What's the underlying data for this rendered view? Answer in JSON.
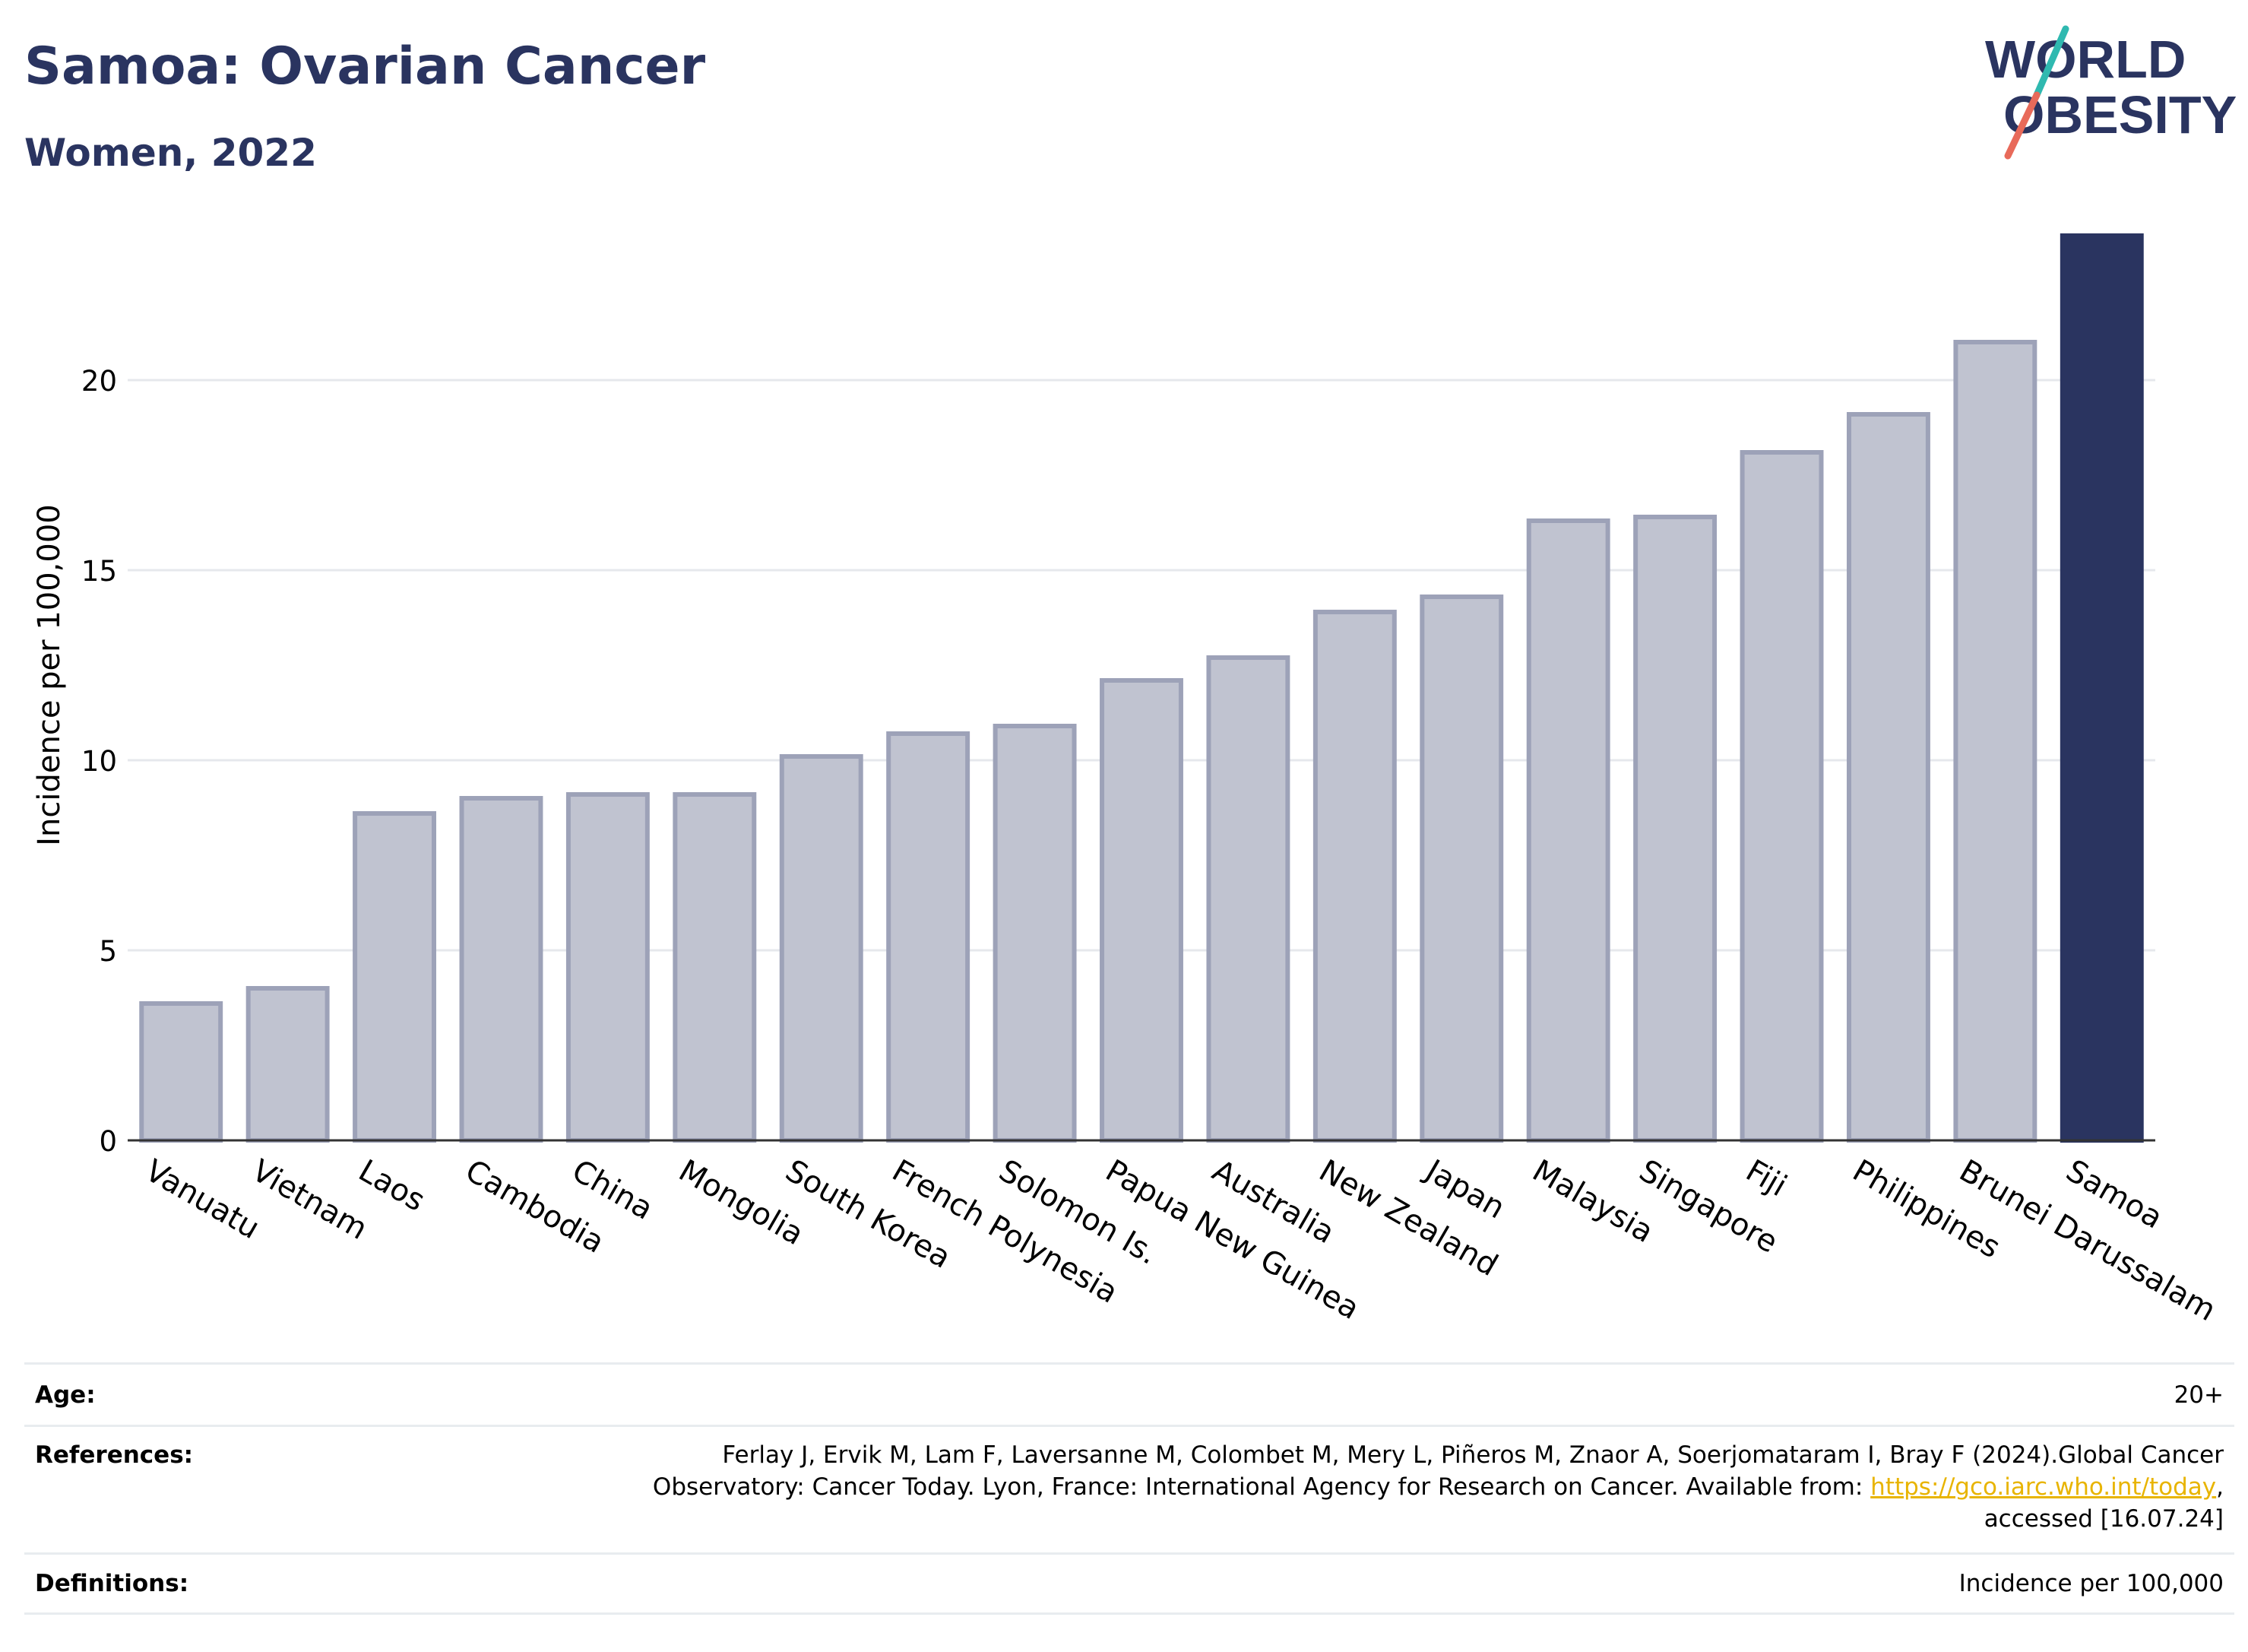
{
  "header": {
    "title": "Samoa: Ovarian Cancer",
    "subtitle": "Women, 2022"
  },
  "logo": {
    "line1": "WORLD",
    "line2": "OBESITY",
    "colors": {
      "text": "#2a3460",
      "slash_top": "#2fb9b0",
      "slash_bottom": "#e86a5a"
    }
  },
  "chart_data": {
    "type": "bar",
    "ylabel": "Incidence per 100,000",
    "xlabel": "",
    "ylim": [
      0,
      24
    ],
    "yticks": [
      0,
      5,
      10,
      15,
      20
    ],
    "grid": true,
    "categories": [
      "Vanuatu",
      "Vietnam",
      "Laos",
      "Cambodia",
      "China",
      "Mongolia",
      "South Korea",
      "French Polynesia",
      "Solomon Is.",
      "Papua New Guinea",
      "Australia",
      "New Zealand",
      "Japan",
      "Malaysia",
      "Singapore",
      "Fiji",
      "Philippines",
      "Brunei Darussalam",
      "Samoa"
    ],
    "values": [
      3.6,
      4.0,
      8.6,
      9.0,
      9.1,
      9.1,
      10.1,
      10.7,
      10.9,
      12.1,
      12.7,
      13.9,
      14.3,
      16.3,
      16.4,
      18.1,
      19.1,
      21.0,
      23.8
    ],
    "highlight": "Samoa",
    "colors": {
      "bar": "#c0c3d0",
      "bar_border": "#9da2b8",
      "highlight": "#2a3460"
    }
  },
  "info": {
    "age_label": "Age:",
    "age_value": "20+",
    "references_label": "References:",
    "references_line1": "Ferlay J, Ervik M, Lam F, Laversanne M, Colombet M, Mery L, Piñeros M, Znaor A, Soerjomataram I, Bray F (2024).Global Cancer",
    "references_line2_pre": "Observatory: Cancer Today. Lyon, France: International Agency for Research on Cancer. Available from: ",
    "references_link": "https://gco.iarc.who.int/today",
    "references_line2_post": ",",
    "references_line3": "accessed [16.07.24]",
    "definitions_label": "Definitions:",
    "definitions_value": "Incidence per 100,000"
  }
}
